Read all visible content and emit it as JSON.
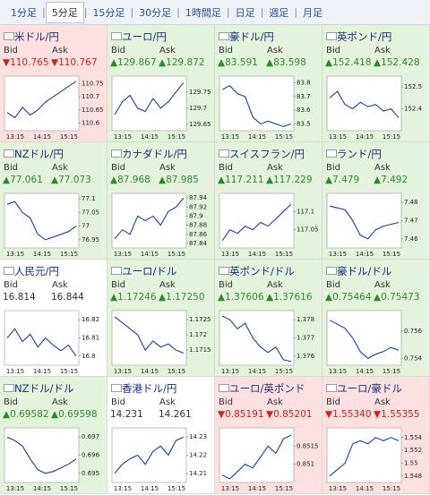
{
  "tabs": [
    "1分足",
    "5分足",
    "15分足",
    "30分足",
    "1時間足",
    "日足",
    "週足",
    "月足"
  ],
  "active_tab": 1,
  "bid_label": "Bid",
  "ask_label": "Ask",
  "time_labels": [
    "13:15",
    "14:15",
    "15:15"
  ],
  "tiles": [
    {
      "title": "米ドル/円",
      "trend": "down",
      "bid": "▼110.765",
      "ask": "▼110.767",
      "chart_data": {
        "type": "line",
        "ylim": [
          110.57,
          110.78
        ],
        "yticks": [
          110.75,
          110.7,
          110.65,
          110.6
        ],
        "values": [
          110.64,
          110.62,
          110.66,
          110.63,
          110.65,
          110.68,
          110.7,
          110.72,
          110.74,
          110.76
        ]
      }
    },
    {
      "title": "ユーロ/円",
      "trend": "up",
      "bid": "▲129.867",
      "ask": "▲129.872",
      "chart_data": {
        "type": "line",
        "ylim": [
          129.63,
          129.8
        ],
        "yticks": [
          129.75,
          129.7,
          129.65
        ],
        "values": [
          129.68,
          129.72,
          129.74,
          129.7,
          129.69,
          129.73,
          129.7,
          129.72,
          129.75,
          129.78
        ]
      }
    },
    {
      "title": "豪ドル/円",
      "trend": "up",
      "bid": "▲83.591",
      "ask": "▲83.598",
      "chart_data": {
        "type": "line",
        "ylim": [
          83.45,
          83.85
        ],
        "yticks": [
          83.8,
          83.7,
          83.6,
          83.5
        ],
        "values": [
          83.75,
          83.78,
          83.72,
          83.7,
          83.55,
          83.5,
          83.52,
          83.5,
          83.48,
          83.5
        ]
      }
    },
    {
      "title": "英ポンド/円",
      "trend": "up",
      "bid": "▲152.418",
      "ask": "▲152.428",
      "chart_data": {
        "type": "line",
        "ylim": [
          152.3,
          152.55
        ],
        "yticks": [
          152.5,
          152.4
        ],
        "values": [
          152.45,
          152.48,
          152.42,
          152.4,
          152.43,
          152.41,
          152.42,
          152.39,
          152.4,
          152.36
        ]
      }
    },
    {
      "title": "NZドル/円",
      "trend": "up",
      "bid": "▲77.061",
      "ask": "▲77.073",
      "chart_data": {
        "type": "line",
        "ylim": [
          76.92,
          77.12
        ],
        "yticks": [
          77.1,
          77.05,
          77,
          76.95
        ],
        "values": [
          77.08,
          77.09,
          77.05,
          77.03,
          76.97,
          76.95,
          76.96,
          76.97,
          76.98,
          77.0
        ]
      }
    },
    {
      "title": "カナダドル/円",
      "trend": "up",
      "bid": "▲87.968",
      "ask": "▲87.985",
      "chart_data": {
        "type": "line",
        "ylim": [
          87.83,
          87.95
        ],
        "yticks": [
          87.94,
          87.92,
          87.9,
          87.88,
          87.86,
          87.84
        ],
        "values": [
          87.85,
          87.87,
          87.86,
          87.9,
          87.89,
          87.9,
          87.88,
          87.91,
          87.92,
          87.94
        ]
      }
    },
    {
      "title": "スイスフラン/円",
      "trend": "up",
      "bid": "▲117.211",
      "ask": "▲117.229",
      "chart_data": {
        "type": "line",
        "ylim": [
          117.0,
          117.15
        ],
        "yticks": [
          117.1,
          117.05
        ],
        "values": [
          117.02,
          117.05,
          117.04,
          117.06,
          117.05,
          117.07,
          117.06,
          117.08,
          117.1,
          117.12
        ]
      }
    },
    {
      "title": "ランド/円",
      "trend": "up",
      "bid": "▲7.479",
      "ask": "▲7.492",
      "chart_data": {
        "type": "line",
        "ylim": [
          7.455,
          7.485
        ],
        "yticks": [
          7.48,
          7.47,
          7.46
        ],
        "values": [
          7.478,
          7.477,
          7.476,
          7.47,
          7.462,
          7.46,
          7.465,
          7.467,
          7.468,
          7.469
        ]
      }
    },
    {
      "title": "人民元/円",
      "trend": "flat",
      "bid": "16.814",
      "ask": "16.844",
      "chart_data": {
        "type": "line",
        "ylim": [
          16.795,
          16.825
        ],
        "yticks": [
          16.82,
          16.81,
          16.8
        ],
        "values": [
          16.81,
          16.815,
          16.808,
          16.812,
          16.805,
          16.81,
          16.806,
          16.803,
          16.806,
          16.8
        ]
      }
    },
    {
      "title": "ユーロ/ドル",
      "trend": "up",
      "bid": "▲1.17246",
      "ask": "▲1.17250",
      "chart_data": {
        "type": "line",
        "ylim": [
          1.171,
          1.1728
        ],
        "yticks": [
          1.1725,
          1.172,
          1.1715
        ],
        "values": [
          1.1726,
          1.1724,
          1.1722,
          1.172,
          1.1715,
          1.1718,
          1.1716,
          1.1717,
          1.1715,
          1.1714
        ]
      }
    },
    {
      "title": "英ポンド/ドル",
      "trend": "up",
      "bid": "▲1.37606",
      "ask": "▲1.37616",
      "chart_data": {
        "type": "line",
        "ylim": [
          1.3755,
          1.3785
        ],
        "yticks": [
          1.378,
          1.377,
          1.376
        ],
        "values": [
          1.3782,
          1.378,
          1.3775,
          1.3778,
          1.377,
          1.3765,
          1.3762,
          1.3765,
          1.3758,
          1.3757
        ]
      }
    },
    {
      "title": "豪ドル/ドル",
      "trend": "up",
      "bid": "▲0.75464",
      "ask": "▲0.75473",
      "chart_data": {
        "type": "line",
        "ylim": [
          0.7535,
          0.7575
        ],
        "yticks": [
          0.756,
          0.754
        ],
        "values": [
          0.7568,
          0.7565,
          0.7562,
          0.7555,
          0.7545,
          0.754,
          0.7543,
          0.7545,
          0.7548,
          0.7546
        ]
      }
    },
    {
      "title": "NZドル/ドル",
      "trend": "up",
      "bid": "▲0.69582",
      "ask": "▲0.69598",
      "chart_data": {
        "type": "line",
        "ylim": [
          0.6945,
          0.6975
        ],
        "yticks": [
          0.697,
          0.696,
          0.695
        ],
        "values": [
          0.697,
          0.6968,
          0.6965,
          0.6958,
          0.6952,
          0.695,
          0.6951,
          0.6953,
          0.6955,
          0.6958
        ]
      }
    },
    {
      "title": "香港ドル/円",
      "trend": "flat",
      "bid": "14.231",
      "ask": "14.261",
      "chart_data": {
        "type": "line",
        "ylim": [
          14.205,
          14.235
        ],
        "yticks": [
          14.23,
          14.22,
          14.21
        ],
        "values": [
          14.21,
          14.215,
          14.218,
          14.22,
          14.215,
          14.222,
          14.225,
          14.22,
          14.228,
          14.23
        ]
      }
    },
    {
      "title": "ユーロ/英ポンド",
      "trend": "down",
      "bid": "▼0.85191",
      "ask": "▼0.85201",
      "chart_data": {
        "type": "line",
        "ylim": [
          0.8505,
          0.852
        ],
        "yticks": [
          0.8515,
          0.851
        ],
        "values": [
          0.8507,
          0.8506,
          0.8508,
          0.851,
          0.8509,
          0.8512,
          0.8515,
          0.8513,
          0.8517,
          0.8518
        ]
      }
    },
    {
      "title": "ユーロ/豪ドル",
      "trend": "down",
      "bid": "▼1.55340",
      "ask": "▼1.55355",
      "chart_data": {
        "type": "line",
        "ylim": [
          1.547,
          1.5555
        ],
        "yticks": [
          1.554,
          1.552,
          1.55,
          1.548
        ],
        "values": [
          1.548,
          1.549,
          1.55,
          1.553,
          1.5535,
          1.553,
          1.554,
          1.5535,
          1.554,
          1.5535
        ]
      }
    }
  ]
}
